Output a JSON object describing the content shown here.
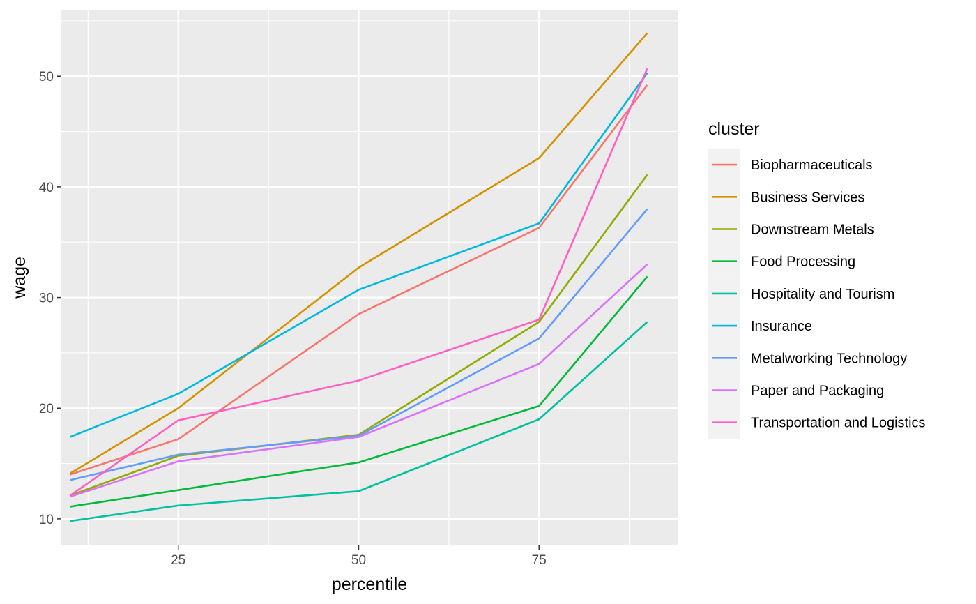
{
  "chart_data": {
    "type": "line",
    "xlabel": "percentile",
    "ylabel": "wage",
    "xlim": [
      8.8,
      94.2
    ],
    "ylim": [
      7.6,
      56.0
    ],
    "x_ticks": [
      25,
      50,
      75
    ],
    "x_tick_labels": [
      "25",
      "50",
      "75"
    ],
    "y_ticks": [
      10,
      20,
      30,
      40,
      50
    ],
    "y_tick_labels": [
      "10",
      "20",
      "30",
      "40",
      "50"
    ],
    "grid": true,
    "legend": {
      "title": "cluster",
      "position": "right"
    },
    "x": [
      10,
      25,
      50,
      75,
      90
    ],
    "series": [
      {
        "name": "Biopharmaceuticals",
        "color": "#F8766D",
        "values": [
          14.0,
          17.2,
          28.5,
          36.3,
          49.2
        ]
      },
      {
        "name": "Business Services",
        "color": "#D39200",
        "values": [
          14.1,
          20.0,
          32.7,
          42.6,
          53.9
        ]
      },
      {
        "name": "Downstream Metals",
        "color": "#93AA00",
        "values": [
          12.1,
          15.7,
          17.6,
          27.8,
          41.1
        ]
      },
      {
        "name": "Food Processing",
        "color": "#00BA38",
        "values": [
          11.1,
          12.6,
          15.1,
          20.2,
          31.9
        ]
      },
      {
        "name": "Hospitality and Tourism",
        "color": "#00C19F",
        "values": [
          9.8,
          11.2,
          12.5,
          19.0,
          27.8
        ]
      },
      {
        "name": "Insurance",
        "color": "#00B9E3",
        "values": [
          17.4,
          21.3,
          30.7,
          36.7,
          50.3
        ]
      },
      {
        "name": "Metalworking Technology",
        "color": "#619CFF",
        "values": [
          13.5,
          15.8,
          17.5,
          26.3,
          38.0
        ]
      },
      {
        "name": "Paper and Packaging",
        "color": "#DB72FB",
        "values": [
          12.0,
          15.2,
          17.4,
          24.0,
          33.0
        ]
      },
      {
        "name": "Transportation and Logistics",
        "color": "#FF61C3",
        "values": [
          12.1,
          18.9,
          22.5,
          28.0,
          50.7
        ]
      }
    ]
  }
}
